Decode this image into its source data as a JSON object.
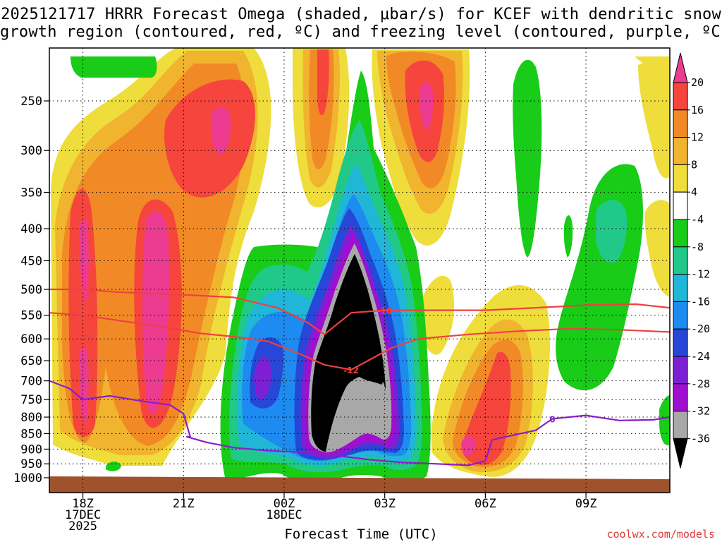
{
  "title": {
    "line1": "2025121717 HRRR Forecast Omega (shaded, μbar/s) for KCEF with dendritic snow",
    "line2": "growth region (contoured, red, ºC) and freezing level (contoured, purple, ºC)"
  },
  "credit": "coolwx.com/models",
  "chart_data": {
    "type": "heatmap",
    "xlabel": "Forecast Time (UTC)",
    "ylabel": "",
    "x_axis": {
      "units": "hours since 2025-12-17 17Z",
      "range": [
        17,
        35.5
      ],
      "ticks": [
        {
          "x": 18,
          "lines": [
            "18Z",
            "17DEC",
            "2025"
          ]
        },
        {
          "x": 21,
          "lines": [
            "21Z"
          ]
        },
        {
          "x": 24,
          "lines": [
            "00Z",
            "18DEC"
          ]
        },
        {
          "x": 27,
          "lines": [
            "03Z"
          ]
        },
        {
          "x": 30,
          "lines": [
            "06Z"
          ]
        },
        {
          "x": 33,
          "lines": [
            "09Z"
          ]
        }
      ]
    },
    "y_axis": {
      "units": "hPa",
      "scale": "log-pressure",
      "range": [
        1000,
        200
      ],
      "ticks": [
        250,
        300,
        350,
        400,
        450,
        500,
        550,
        600,
        650,
        700,
        750,
        800,
        850,
        900,
        950,
        1000
      ]
    },
    "grid": true,
    "colorbar": {
      "levels": [
        20,
        16,
        12,
        8,
        4,
        -4,
        -8,
        -12,
        -16,
        -20,
        -24,
        -28,
        -32,
        -36
      ],
      "colors": [
        "#ec3b90",
        "#f5453d",
        "#f18a26",
        "#f0b42f",
        "#eedd3a",
        "#ffffff",
        "#18cc18",
        "#21c988",
        "#20b6d8",
        "#1e8bf0",
        "#2647d8",
        "#7d20d4",
        "#a00fcf",
        "#a8a8a8",
        "#000000"
      ],
      "labels": [
        "20",
        "16",
        "12",
        "8",
        "4",
        "-4",
        "-8",
        "-12",
        "-16",
        "-20",
        "-24",
        "-28",
        "-32",
        "-36"
      ]
    },
    "dendritic_contours": [
      {
        "label": "-18",
        "color": "#f04040",
        "x": [
          17,
          18,
          19,
          21,
          22.5,
          23.8,
          24.7,
          25.2,
          26,
          27,
          28.5,
          30,
          31.5,
          33,
          34.5,
          35.5
        ],
        "p": [
          500,
          500,
          505,
          510,
          515,
          535,
          565,
          590,
          545,
          540,
          540,
          540,
          535,
          530,
          528,
          535
        ]
      },
      {
        "label": "-12",
        "color": "#f04040",
        "x": [
          17,
          18,
          19,
          20.5,
          21.5,
          22.5,
          23.5,
          24.5,
          25.2,
          26,
          26.5,
          27.2,
          28,
          29.5,
          31,
          32.5,
          34,
          35.5
        ],
        "p": [
          545,
          550,
          560,
          575,
          588,
          595,
          605,
          635,
          660,
          672,
          650,
          620,
          600,
          590,
          583,
          578,
          580,
          585
        ]
      }
    ],
    "freezing_level": {
      "label": "0",
      "color": "#8b1ec8",
      "x": [
        17,
        17.6,
        18,
        18.8,
        19.8,
        20.6,
        21.0,
        21.2,
        21.1,
        21.7,
        22.5,
        23.5,
        24.5,
        25.3,
        25.8,
        26.5,
        27.5,
        28.5,
        29.5,
        30.0,
        30.2,
        30.6,
        31.5,
        32.0,
        33.0,
        34.0,
        35.0,
        35.5
      ],
      "p": [
        700,
        720,
        750,
        740,
        755,
        765,
        790,
        860,
        860,
        878,
        895,
        905,
        910,
        918,
        925,
        935,
        945,
        950,
        955,
        940,
        870,
        860,
        840,
        805,
        795,
        810,
        808,
        800
      ]
    }
  }
}
